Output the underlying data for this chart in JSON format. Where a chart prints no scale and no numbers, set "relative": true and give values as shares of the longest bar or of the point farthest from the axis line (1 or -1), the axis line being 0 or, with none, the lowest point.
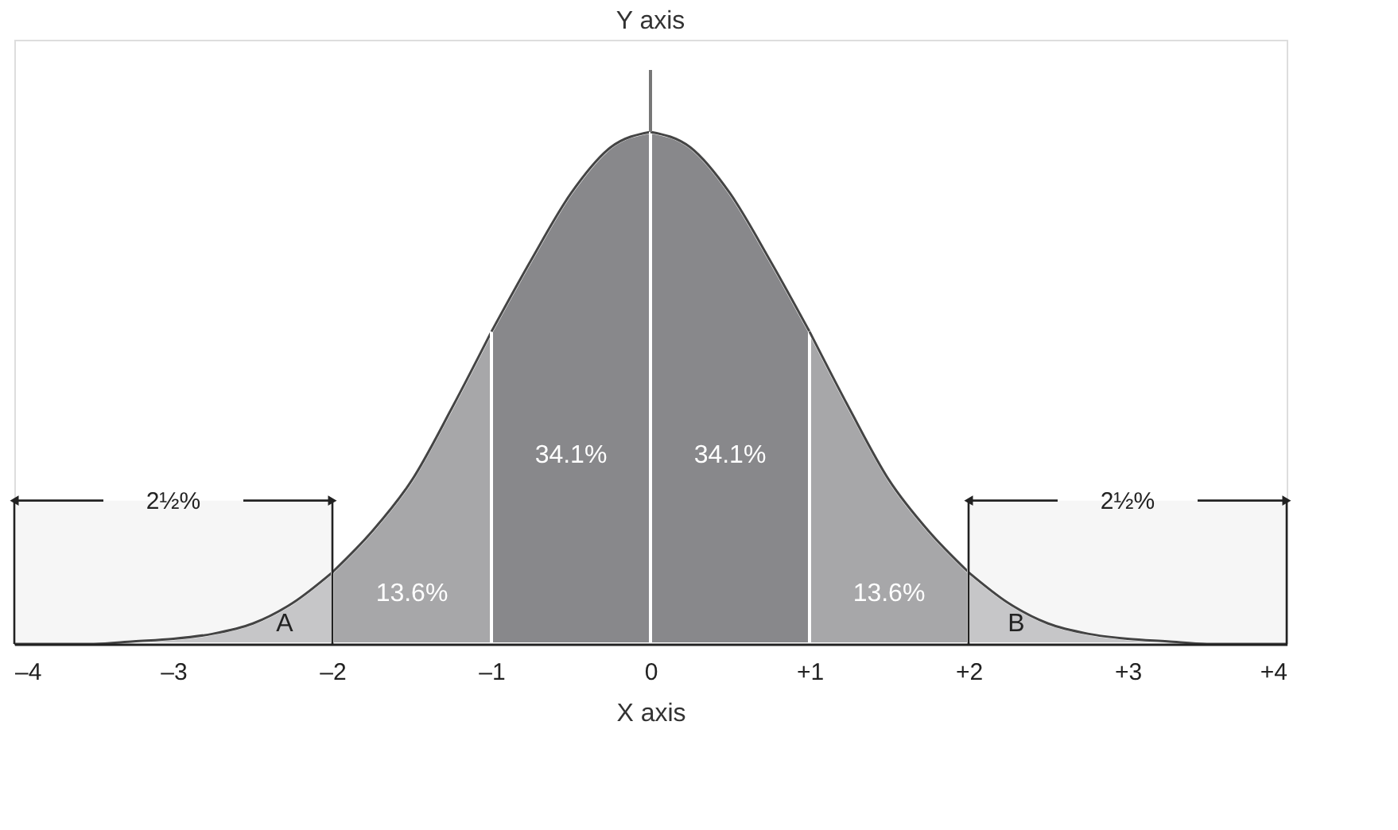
{
  "chart_data": {
    "type": "area",
    "relative": true,
    "xlabel": "X axis",
    "ylabel": "Y axis",
    "xlim": [
      -4,
      4
    ],
    "xticks": [
      {
        "value": -4,
        "label": "–4"
      },
      {
        "value": -3,
        "label": "–3"
      },
      {
        "value": -2,
        "label": "–2"
      },
      {
        "value": -1,
        "label": "–1"
      },
      0,
      {
        "value": 1,
        "label": "+1"
      },
      {
        "value": 2,
        "label": "+2"
      },
      {
        "value": 3,
        "label": "+3"
      },
      {
        "value": 4,
        "label": "+4"
      }
    ],
    "series": [
      {
        "color": "#c6c6c8",
        "x": [
          -4,
          -3.75,
          -3.5,
          -3.25,
          -3,
          -2.75,
          -2.5,
          -2.25,
          -2
        ],
        "values": [
          0,
          0,
          0,
          0.005,
          0.01,
          0.02,
          0.04,
          0.08,
          0.14
        ]
      },
      {
        "color": "#a7a7a9",
        "x": [
          -2,
          -1.75,
          -1.5,
          -1.25,
          -1
        ],
        "values": [
          0.14,
          0.22,
          0.32,
          0.46,
          0.61
        ]
      },
      {
        "color": "#88888b",
        "x": [
          -1,
          -0.75,
          -0.5,
          -0.25,
          0
        ],
        "values": [
          0.61,
          0.75,
          0.88,
          0.97,
          1
        ]
      },
      {
        "color": "#88888b",
        "x": [
          0,
          0.25,
          0.5,
          0.75,
          1
        ],
        "values": [
          1,
          0.97,
          0.88,
          0.75,
          0.61
        ]
      },
      {
        "color": "#a7a7a9",
        "x": [
          1,
          1.25,
          1.5,
          1.75,
          2
        ],
        "values": [
          0.61,
          0.46,
          0.32,
          0.22,
          0.14
        ]
      },
      {
        "color": "#c6c6c8",
        "x": [
          2,
          2.25,
          2.5,
          2.75,
          3,
          3.25,
          3.5,
          3.75,
          4
        ],
        "values": [
          0.14,
          0.08,
          0.04,
          0.02,
          0.01,
          0.005,
          0,
          0,
          0
        ]
      }
    ],
    "bands": [
      {
        "axis": "x",
        "from": -4,
        "to": -2,
        "label": "2½%"
      },
      {
        "axis": "x",
        "from": 2,
        "to": 4,
        "label": "2½%"
      }
    ],
    "annotations": [
      "34.1%",
      "34.1%",
      "13.6%",
      "13.6%",
      "A",
      "B"
    ]
  }
}
